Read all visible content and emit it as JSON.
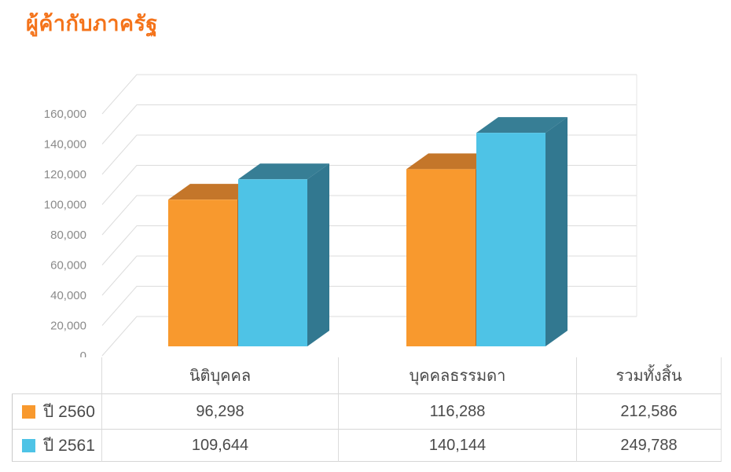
{
  "title": "ผู้ค้ากับภาครัฐ",
  "colors": {
    "title": "#f4731a",
    "grid": "#dcdcdc",
    "axis_text": "#8a8a8a",
    "table_text": "#4a4a4a"
  },
  "chart_data": {
    "type": "bar",
    "style": "3d-column",
    "title": "ผู้ค้ากับภาครัฐ",
    "categories": [
      "นิติบุคคล",
      "บุคคลธรรมดา"
    ],
    "series": [
      {
        "name": "ปี 2560",
        "values": [
          96298,
          116288
        ],
        "color": "#f8992e",
        "color_top": "#c4762a",
        "color_side": "#b06a26"
      },
      {
        "name": "ปี 2561",
        "values": [
          109644,
          140144
        ],
        "color": "#4ec3e6",
        "color_top": "#377e95",
        "color_side": "#327890"
      }
    ],
    "ylabel": "",
    "xlabel": "",
    "ylim": [
      0,
      160000
    ],
    "ytick_step": 20000,
    "yticks": [
      "160,000",
      "140,000",
      "120,000",
      "100,000",
      "80,000",
      "60,000",
      "40,000",
      "20,000",
      "0"
    ],
    "grid": true,
    "legend_position": "table-left-column"
  },
  "table": {
    "columns": [
      "นิติบุคคล",
      "บุคคลธรรมดา",
      "รวมทั้งสิ้น"
    ],
    "rows": [
      {
        "legend": "ปี 2560",
        "values": [
          "96,298",
          "116,288",
          "212,586"
        ],
        "total": "212,586"
      },
      {
        "legend": "ปี 2561",
        "values": [
          "109,644",
          "140,144",
          "249,788"
        ],
        "total": "249,788"
      }
    ]
  }
}
